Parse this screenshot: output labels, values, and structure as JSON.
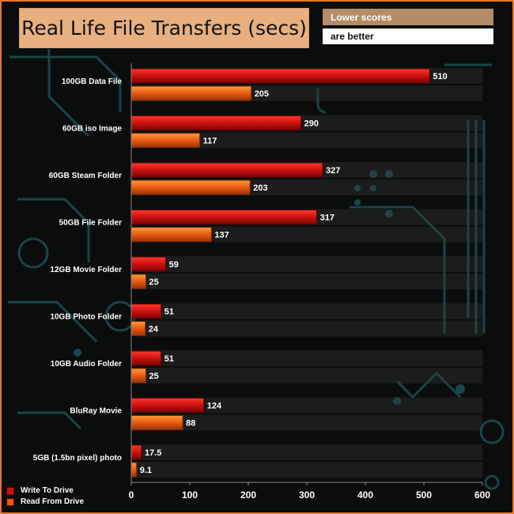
{
  "title": "Real Life File Transfers (secs)",
  "note": {
    "line1": "Lower scores",
    "line2": "are better"
  },
  "legend": {
    "items": [
      {
        "label": "Write To  Drive",
        "color": "#cc1111"
      },
      {
        "label": "Read From  Drive",
        "color": "#e85a12"
      }
    ]
  },
  "colors": {
    "write": "#cc1111",
    "read": "#e85a12",
    "accent": "#e8772a"
  },
  "chart_data": {
    "type": "bar",
    "orientation": "horizontal",
    "categories": [
      "100GB Data File",
      "60GB iso Image",
      "60GB Steam Folder",
      "50GB File Folder",
      "12GB Movie Folder",
      "10GB Photo Folder",
      "10GB Audio Folder",
      "BluRay Movie",
      "5GB (1.5bn pixel) photo"
    ],
    "series": [
      {
        "name": "Write To  Drive",
        "values": [
          510,
          290,
          327,
          317,
          59,
          51,
          51,
          124,
          17.5
        ],
        "labels": [
          "510",
          "290",
          "327",
          "317",
          "59",
          "51",
          "51",
          "124",
          "17.5"
        ]
      },
      {
        "name": "Read From  Drive",
        "values": [
          205,
          117,
          203,
          137,
          25,
          24,
          25,
          88,
          9.1
        ],
        "labels": [
          "205",
          "117",
          "203",
          "137",
          "25",
          "24",
          "25",
          "88",
          "9.1"
        ]
      }
    ],
    "xlim": [
      0,
      600
    ],
    "xticks": [
      "0",
      "100",
      "200",
      "300",
      "400",
      "500",
      "600"
    ],
    "grid": false,
    "legend_position": "bottom-left"
  }
}
